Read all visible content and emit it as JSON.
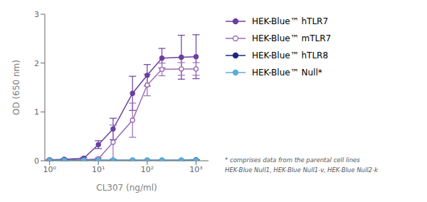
{
  "chart_data": {
    "type": "line",
    "xlabel": "CL307 (ng/ml)",
    "ylabel": "OD (650 nm)",
    "log": "x",
    "xlim": [
      0.8,
      1800
    ],
    "xticks": [
      {
        "value": 1,
        "label": "10⁰"
      },
      {
        "value": 10,
        "label": "10¹"
      },
      {
        "value": 100,
        "label": "10²"
      },
      {
        "value": 1000,
        "label": "10³"
      }
    ],
    "ylim": [
      0,
      3
    ],
    "yticks": [
      0,
      1,
      2,
      3
    ],
    "grid": false,
    "legend": "right",
    "annotations": [
      "* comprises data from the parental cell lines",
      "HEK-Blue Null1, HEK-Blue Null1-v, HEK-Blue Null2-k"
    ],
    "x": [
      1,
      2,
      5,
      10,
      20,
      50,
      100,
      200,
      500,
      1000
    ],
    "series": [
      {
        "name": "HEK-Blue™ hTLR7",
        "color": "#6B3FA0",
        "marker": "circle",
        "values": [
          0.02,
          0.03,
          0.05,
          0.33,
          0.65,
          1.38,
          1.75,
          2.1,
          2.12,
          2.13
        ],
        "errors": [
          0.01,
          0.01,
          0.02,
          0.08,
          0.22,
          0.35,
          0.22,
          0.2,
          0.45,
          0.45
        ]
      },
      {
        "name": "HEK-Blue™ mTLR7",
        "color": "#9B6BB5",
        "marker": "open_circle",
        "values": [
          0.01,
          0.01,
          0.02,
          0.04,
          0.38,
          0.83,
          1.55,
          1.87,
          1.88,
          1.88
        ],
        "errors": [
          0.005,
          0.005,
          0.01,
          0.02,
          0.35,
          0.35,
          0.22,
          0.13,
          0.13,
          0.13
        ]
      },
      {
        "name": "HEK-Blue™ hTLR8",
        "color": "#1B2A7A",
        "marker": "circle",
        "values": [
          0.01,
          0.01,
          0.01,
          0.01,
          0.01,
          0.01,
          0.01,
          0.01,
          0.01,
          0.02
        ],
        "errors": [
          0.003,
          0.003,
          0.003,
          0.003,
          0.003,
          0.003,
          0.003,
          0.003,
          0.003,
          0.003
        ]
      },
      {
        "name": "HEK-Blue™ Null*",
        "color": "#5BAED4",
        "marker": "circle",
        "values": [
          0.01,
          0.01,
          0.01,
          0.01,
          0.01,
          0.01,
          0.01,
          0.01,
          0.01,
          0.01
        ],
        "errors": [
          0.003,
          0.003,
          0.003,
          0.003,
          0.003,
          0.003,
          0.003,
          0.003,
          0.003,
          0.003
        ]
      }
    ]
  }
}
